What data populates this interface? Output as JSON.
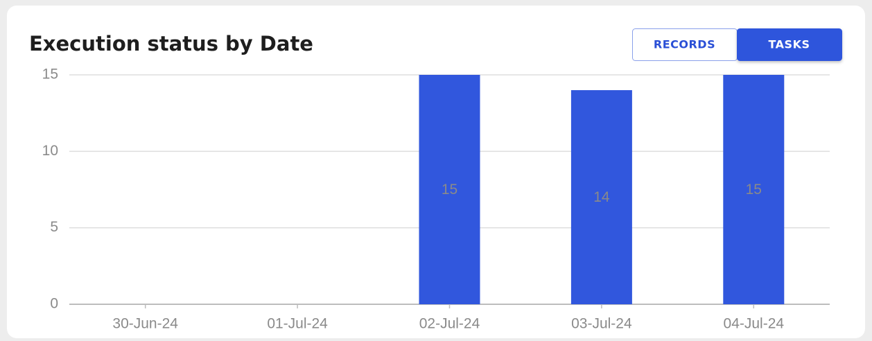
{
  "chart_data": {
    "type": "bar",
    "title": "Execution status by Date",
    "categories": [
      "30-Jun-24",
      "01-Jul-24",
      "02-Jul-24",
      "03-Jul-24",
      "04-Jul-24"
    ],
    "values": [
      0,
      0,
      15,
      14,
      15
    ],
    "color": "#3157dd",
    "ylim": [
      0,
      15
    ],
    "yticks": [
      0,
      5,
      10,
      15
    ],
    "grid": true
  },
  "buttons": [
    "RECORDS",
    "TASKS"
  ],
  "active_button": 1
}
